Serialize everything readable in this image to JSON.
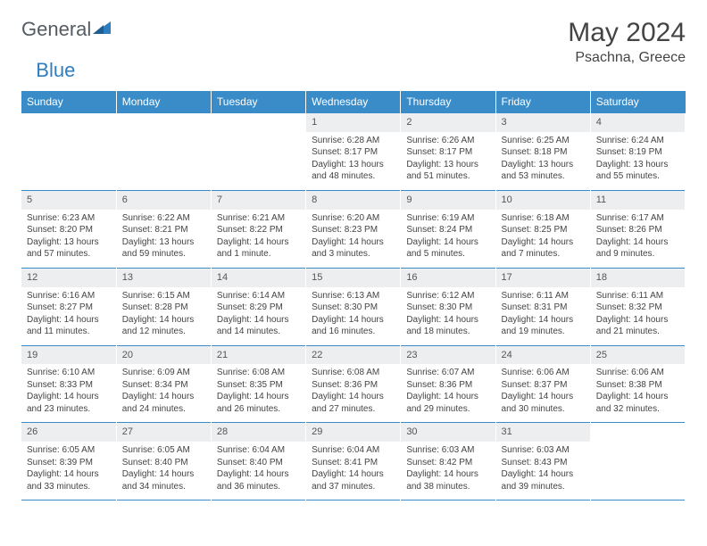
{
  "logo": {
    "text1": "General",
    "text2": "Blue"
  },
  "title": "May 2024",
  "location": "Psachna, Greece",
  "colors": {
    "header_bg": "#3a8cc9",
    "header_fg": "#ffffff",
    "daynum_bg": "#eceef0",
    "rule": "#3a8cc9",
    "logo_gray": "#555b60",
    "logo_blue": "#2f7ebf"
  },
  "day_names": [
    "Sunday",
    "Monday",
    "Tuesday",
    "Wednesday",
    "Thursday",
    "Friday",
    "Saturday"
  ],
  "weeks": [
    [
      {
        "empty": true
      },
      {
        "empty": true
      },
      {
        "empty": true
      },
      {
        "n": "1",
        "sr": "6:28 AM",
        "ss": "8:17 PM",
        "dl": "13 hours and 48 minutes."
      },
      {
        "n": "2",
        "sr": "6:26 AM",
        "ss": "8:17 PM",
        "dl": "13 hours and 51 minutes."
      },
      {
        "n": "3",
        "sr": "6:25 AM",
        "ss": "8:18 PM",
        "dl": "13 hours and 53 minutes."
      },
      {
        "n": "4",
        "sr": "6:24 AM",
        "ss": "8:19 PM",
        "dl": "13 hours and 55 minutes."
      }
    ],
    [
      {
        "n": "5",
        "sr": "6:23 AM",
        "ss": "8:20 PM",
        "dl": "13 hours and 57 minutes."
      },
      {
        "n": "6",
        "sr": "6:22 AM",
        "ss": "8:21 PM",
        "dl": "13 hours and 59 minutes."
      },
      {
        "n": "7",
        "sr": "6:21 AM",
        "ss": "8:22 PM",
        "dl": "14 hours and 1 minute."
      },
      {
        "n": "8",
        "sr": "6:20 AM",
        "ss": "8:23 PM",
        "dl": "14 hours and 3 minutes."
      },
      {
        "n": "9",
        "sr": "6:19 AM",
        "ss": "8:24 PM",
        "dl": "14 hours and 5 minutes."
      },
      {
        "n": "10",
        "sr": "6:18 AM",
        "ss": "8:25 PM",
        "dl": "14 hours and 7 minutes."
      },
      {
        "n": "11",
        "sr": "6:17 AM",
        "ss": "8:26 PM",
        "dl": "14 hours and 9 minutes."
      }
    ],
    [
      {
        "n": "12",
        "sr": "6:16 AM",
        "ss": "8:27 PM",
        "dl": "14 hours and 11 minutes."
      },
      {
        "n": "13",
        "sr": "6:15 AM",
        "ss": "8:28 PM",
        "dl": "14 hours and 12 minutes."
      },
      {
        "n": "14",
        "sr": "6:14 AM",
        "ss": "8:29 PM",
        "dl": "14 hours and 14 minutes."
      },
      {
        "n": "15",
        "sr": "6:13 AM",
        "ss": "8:30 PM",
        "dl": "14 hours and 16 minutes."
      },
      {
        "n": "16",
        "sr": "6:12 AM",
        "ss": "8:30 PM",
        "dl": "14 hours and 18 minutes."
      },
      {
        "n": "17",
        "sr": "6:11 AM",
        "ss": "8:31 PM",
        "dl": "14 hours and 19 minutes."
      },
      {
        "n": "18",
        "sr": "6:11 AM",
        "ss": "8:32 PM",
        "dl": "14 hours and 21 minutes."
      }
    ],
    [
      {
        "n": "19",
        "sr": "6:10 AM",
        "ss": "8:33 PM",
        "dl": "14 hours and 23 minutes."
      },
      {
        "n": "20",
        "sr": "6:09 AM",
        "ss": "8:34 PM",
        "dl": "14 hours and 24 minutes."
      },
      {
        "n": "21",
        "sr": "6:08 AM",
        "ss": "8:35 PM",
        "dl": "14 hours and 26 minutes."
      },
      {
        "n": "22",
        "sr": "6:08 AM",
        "ss": "8:36 PM",
        "dl": "14 hours and 27 minutes."
      },
      {
        "n": "23",
        "sr": "6:07 AM",
        "ss": "8:36 PM",
        "dl": "14 hours and 29 minutes."
      },
      {
        "n": "24",
        "sr": "6:06 AM",
        "ss": "8:37 PM",
        "dl": "14 hours and 30 minutes."
      },
      {
        "n": "25",
        "sr": "6:06 AM",
        "ss": "8:38 PM",
        "dl": "14 hours and 32 minutes."
      }
    ],
    [
      {
        "n": "26",
        "sr": "6:05 AM",
        "ss": "8:39 PM",
        "dl": "14 hours and 33 minutes."
      },
      {
        "n": "27",
        "sr": "6:05 AM",
        "ss": "8:40 PM",
        "dl": "14 hours and 34 minutes."
      },
      {
        "n": "28",
        "sr": "6:04 AM",
        "ss": "8:40 PM",
        "dl": "14 hours and 36 minutes."
      },
      {
        "n": "29",
        "sr": "6:04 AM",
        "ss": "8:41 PM",
        "dl": "14 hours and 37 minutes."
      },
      {
        "n": "30",
        "sr": "6:03 AM",
        "ss": "8:42 PM",
        "dl": "14 hours and 38 minutes."
      },
      {
        "n": "31",
        "sr": "6:03 AM",
        "ss": "8:43 PM",
        "dl": "14 hours and 39 minutes."
      },
      {
        "empty": true
      }
    ]
  ],
  "labels": {
    "sunrise": "Sunrise: ",
    "sunset": "Sunset: ",
    "daylight": "Daylight: "
  }
}
